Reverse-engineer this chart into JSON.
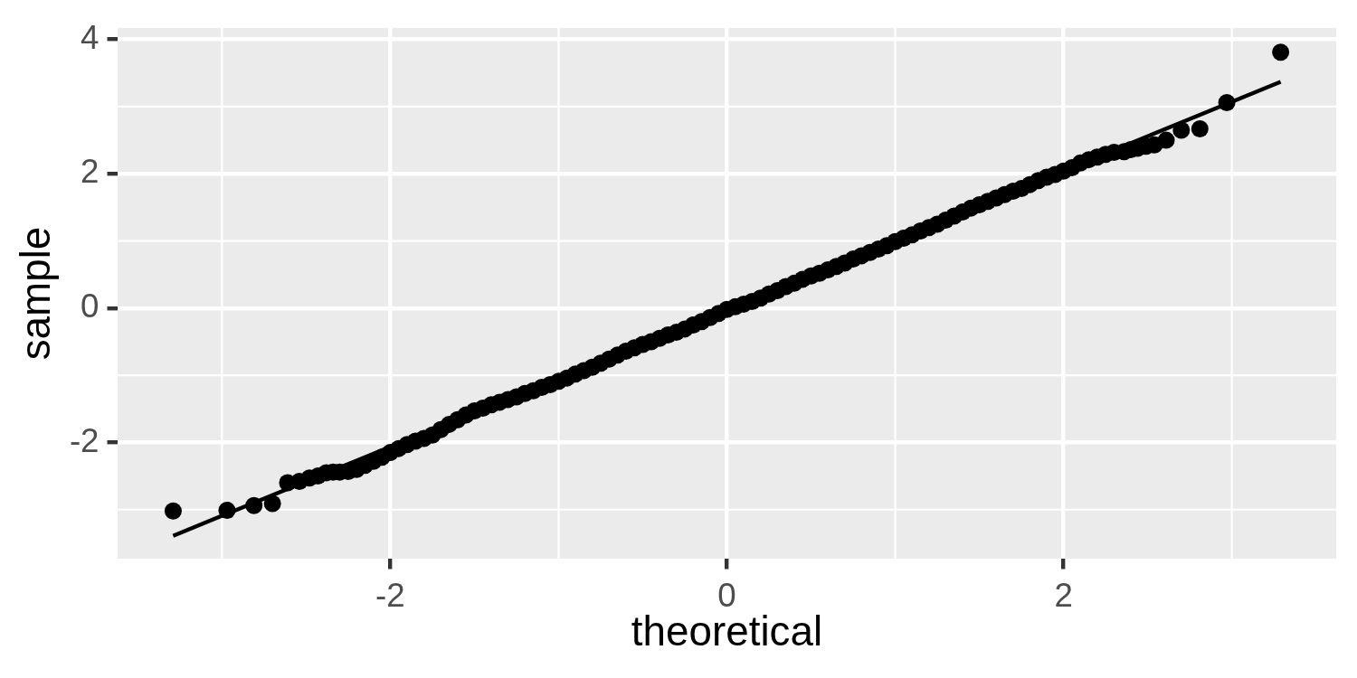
{
  "chart_data": {
    "type": "scatter",
    "xlabel": "theoretical",
    "ylabel": "sample",
    "xlim": [
      -3.62,
      3.62
    ],
    "ylim": [
      -3.73,
      4.17
    ],
    "xticks": [
      -2,
      0,
      2
    ],
    "yticks": [
      -2,
      0,
      2,
      4
    ],
    "grid": true,
    "series": [
      {
        "color": "#000000",
        "marker": "circle",
        "x": [
          -3.29,
          -2.97,
          -2.81,
          -2.7,
          -2.61,
          -2.54,
          -2.48,
          -2.43,
          -2.38,
          -2.34,
          -2.3,
          -2.25,
          -2.2,
          -2.15,
          -2.1,
          -2.05,
          -2.0,
          -1.95,
          -1.9,
          -1.85,
          -1.8,
          -1.75,
          -1.7,
          -1.65,
          -1.6,
          -1.55,
          -1.5,
          -1.45,
          -1.4,
          -1.35,
          -1.3,
          -1.25,
          -1.2,
          -1.15,
          -1.1,
          -1.05,
          -1.0,
          -0.95,
          -0.9,
          -0.85,
          -0.8,
          -0.75,
          -0.7,
          -0.65,
          -0.6,
          -0.55,
          -0.5,
          -0.45,
          -0.4,
          -0.35,
          -0.3,
          -0.25,
          -0.2,
          -0.15,
          -0.1,
          -0.05,
          0.0,
          0.05,
          0.1,
          0.15,
          0.2,
          0.25,
          0.3,
          0.35,
          0.4,
          0.45,
          0.5,
          0.55,
          0.6,
          0.65,
          0.7,
          0.75,
          0.8,
          0.85,
          0.9,
          0.95,
          1.0,
          1.05,
          1.1,
          1.15,
          1.2,
          1.25,
          1.3,
          1.35,
          1.4,
          1.45,
          1.5,
          1.55,
          1.6,
          1.65,
          1.7,
          1.75,
          1.8,
          1.85,
          1.9,
          1.95,
          2.0,
          2.05,
          2.1,
          2.15,
          2.2,
          2.25,
          2.3,
          2.36,
          2.4,
          2.44,
          2.49,
          2.54,
          2.61,
          2.7,
          2.81,
          2.97,
          3.29
        ],
        "values": [
          -3.02,
          -3.01,
          -2.94,
          -2.91,
          -2.6,
          -2.58,
          -2.53,
          -2.5,
          -2.45,
          -2.44,
          -2.44,
          -2.43,
          -2.4,
          -2.34,
          -2.28,
          -2.22,
          -2.15,
          -2.09,
          -2.03,
          -1.98,
          -1.94,
          -1.89,
          -1.81,
          -1.73,
          -1.66,
          -1.59,
          -1.53,
          -1.49,
          -1.44,
          -1.4,
          -1.36,
          -1.32,
          -1.27,
          -1.23,
          -1.18,
          -1.14,
          -1.09,
          -1.04,
          -0.98,
          -0.93,
          -0.88,
          -0.82,
          -0.76,
          -0.7,
          -0.64,
          -0.59,
          -0.54,
          -0.5,
          -0.45,
          -0.4,
          -0.36,
          -0.31,
          -0.25,
          -0.2,
          -0.14,
          -0.08,
          -0.02,
          0.02,
          0.06,
          0.1,
          0.15,
          0.21,
          0.26,
          0.32,
          0.37,
          0.43,
          0.48,
          0.52,
          0.57,
          0.62,
          0.67,
          0.73,
          0.78,
          0.83,
          0.88,
          0.93,
          0.99,
          1.04,
          1.09,
          1.15,
          1.2,
          1.25,
          1.31,
          1.37,
          1.43,
          1.49,
          1.54,
          1.59,
          1.64,
          1.69,
          1.74,
          1.78,
          1.84,
          1.9,
          1.95,
          1.99,
          2.04,
          2.09,
          2.16,
          2.21,
          2.25,
          2.29,
          2.32,
          2.33,
          2.36,
          2.38,
          2.41,
          2.43,
          2.5,
          2.65,
          2.67,
          3.06,
          3.81
        ]
      },
      {
        "type": "line",
        "color": "#000000",
        "x": [
          -3.29,
          3.29
        ],
        "values": [
          -3.39,
          3.37
        ]
      }
    ]
  }
}
